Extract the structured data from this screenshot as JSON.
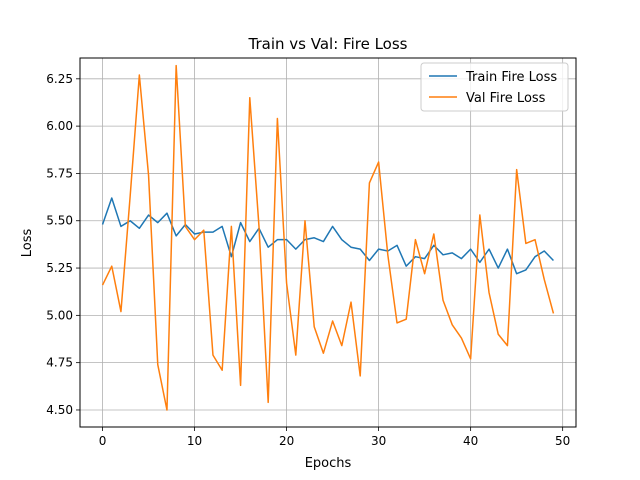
{
  "chart_data": {
    "type": "line",
    "title": "Train vs Val: Fire Loss",
    "xlabel": "Epochs",
    "ylabel": "Loss",
    "xlim": [
      -2.45,
      51.45
    ],
    "ylim": [
      4.41,
      6.36
    ],
    "xticks": [
      0,
      10,
      20,
      30,
      40,
      50
    ],
    "yticks": [
      4.5,
      4.75,
      5.0,
      5.25,
      5.5,
      5.75,
      6.0,
      6.25
    ],
    "xtick_labels": [
      "0",
      "10",
      "20",
      "30",
      "40",
      "50"
    ],
    "ytick_labels": [
      "4.50",
      "4.75",
      "5.00",
      "5.25",
      "5.50",
      "5.75",
      "6.00",
      "6.25"
    ],
    "grid": true,
    "legend_position": "top-right",
    "x": [
      0,
      1,
      2,
      3,
      4,
      5,
      6,
      7,
      8,
      9,
      10,
      11,
      12,
      13,
      14,
      15,
      16,
      17,
      18,
      19,
      20,
      21,
      22,
      23,
      24,
      25,
      26,
      27,
      28,
      29,
      30,
      31,
      32,
      33,
      34,
      35,
      36,
      37,
      38,
      39,
      40,
      41,
      42,
      43,
      44,
      45,
      46,
      47,
      48,
      49
    ],
    "series": [
      {
        "name": "Train Fire Loss",
        "color": "#1f77b4",
        "values": [
          5.48,
          5.62,
          5.47,
          5.5,
          5.46,
          5.53,
          5.49,
          5.54,
          5.42,
          5.48,
          5.43,
          5.44,
          5.44,
          5.47,
          5.31,
          5.49,
          5.39,
          5.46,
          5.36,
          5.4,
          5.4,
          5.35,
          5.4,
          5.41,
          5.39,
          5.47,
          5.4,
          5.36,
          5.35,
          5.29,
          5.35,
          5.34,
          5.37,
          5.26,
          5.31,
          5.3,
          5.37,
          5.32,
          5.33,
          5.3,
          5.35,
          5.28,
          5.35,
          5.25,
          5.35,
          5.22,
          5.24,
          5.31,
          5.34,
          5.29
        ]
      },
      {
        "name": "Val Fire Loss",
        "color": "#ff7f0e",
        "values": [
          5.16,
          5.26,
          5.02,
          5.63,
          6.27,
          5.74,
          4.74,
          4.5,
          6.32,
          5.47,
          5.4,
          5.45,
          4.79,
          4.71,
          5.47,
          4.63,
          6.15,
          5.47,
          4.54,
          6.04,
          5.17,
          4.79,
          5.5,
          4.94,
          4.8,
          4.97,
          4.84,
          5.07,
          4.68,
          5.7,
          5.81,
          5.32,
          4.96,
          4.98,
          5.4,
          5.22,
          5.43,
          5.08,
          4.95,
          4.88,
          4.77,
          5.53,
          5.12,
          4.9,
          4.84,
          5.77,
          5.38,
          5.4,
          5.19,
          5.01
        ]
      }
    ]
  }
}
